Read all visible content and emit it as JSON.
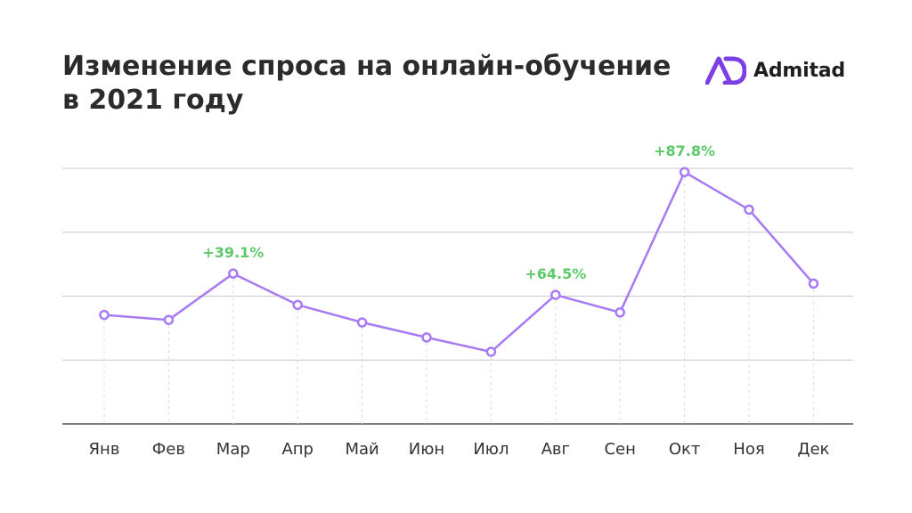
{
  "title": {
    "line1": "Изменение спроса на онлайн-обучение",
    "line2": "в 2021 году"
  },
  "logo": {
    "text": "Admitad",
    "icon": "admitad-logo-icon",
    "color": "#7b3fe4"
  },
  "colors": {
    "line": "#a77bf3",
    "label": "#5ec96b",
    "grid": "#c8c8c8",
    "guide": "#d9d9d9",
    "axis": "#555555"
  },
  "chart_data": {
    "type": "line",
    "categories": [
      "Янв",
      "Фев",
      "Мар",
      "Апр",
      "Май",
      "Июн",
      "Июл",
      "Авг",
      "Сен",
      "Окт",
      "Ноя",
      "Дек"
    ],
    "values": [
      29.5,
      27.5,
      46.0,
      33.5,
      26.5,
      20.5,
      14.8,
      37.5,
      30.5,
      86.5,
      71.5,
      42.0
    ],
    "ylim": [
      -14,
      88
    ],
    "grid": true,
    "grid_steps": 4,
    "annotations": [
      {
        "index": 2,
        "text": "+39.1%"
      },
      {
        "index": 7,
        "text": "+64.5%"
      },
      {
        "index": 9,
        "text": "+87.8%"
      }
    ]
  }
}
